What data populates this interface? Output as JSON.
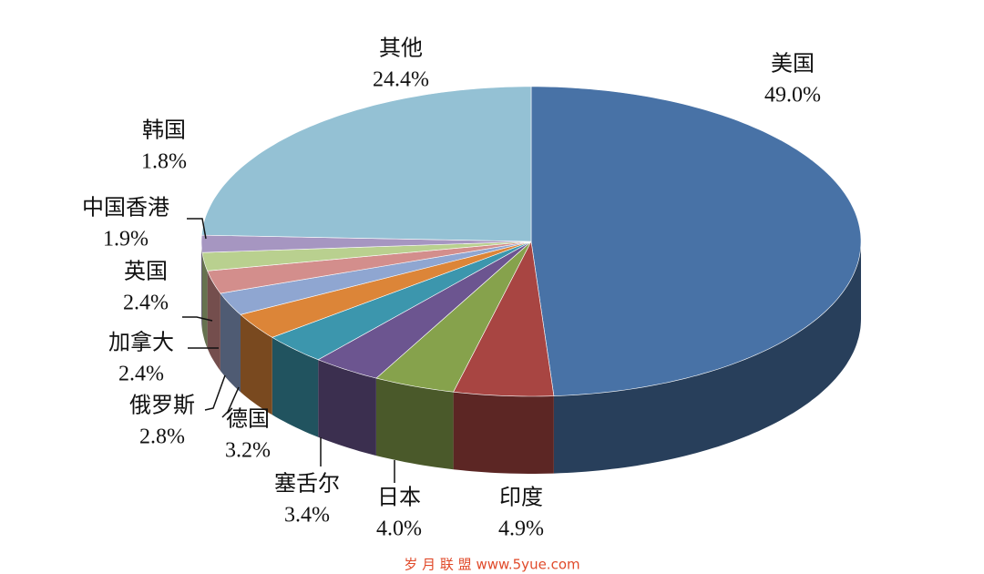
{
  "chart_data": {
    "type": "pie3d",
    "categories": [
      "美国",
      "印度",
      "日本",
      "塞舌尔",
      "德国",
      "俄罗斯",
      "加拿大",
      "英国",
      "中国香港",
      "韩国",
      "其他"
    ],
    "values": [
      49.0,
      4.9,
      4.0,
      3.4,
      3.2,
      2.8,
      2.4,
      2.4,
      1.9,
      1.8,
      24.4
    ],
    "value_labels": [
      "49.0%",
      "4.9%",
      "4.0%",
      "3.4%",
      "3.2%",
      "2.8%",
      "2.4%",
      "2.4%",
      "1.9%",
      "1.8%",
      "24.4%"
    ],
    "colors": [
      "#4872a6",
      "#a84542",
      "#86a24c",
      "#6c5590",
      "#3c96ad",
      "#dc8538",
      "#8fa6d1",
      "#d38e8c",
      "#b9d08f",
      "#a696c1",
      "#94c1d4"
    ],
    "watermark": "岁 月 联 盟   www.5yue.com"
  }
}
